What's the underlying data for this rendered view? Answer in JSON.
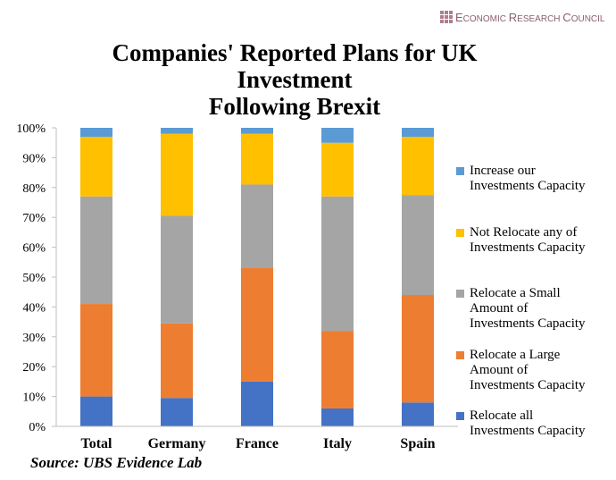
{
  "brand": {
    "name": "Economic Research Council"
  },
  "source": "Source: UBS Evidence Lab",
  "chart_data": {
    "type": "bar",
    "stacked": true,
    "title_lines": [
      "Companies' Reported Plans for UK",
      "Investment",
      "Following Brexit"
    ],
    "categories": [
      "Total",
      "Germany",
      "France",
      "Italy",
      "Spain"
    ],
    "yticks": [
      "0%",
      "10%",
      "20%",
      "30%",
      "40%",
      "50%",
      "60%",
      "70%",
      "80%",
      "90%",
      "100%"
    ],
    "ylim": [
      0,
      100
    ],
    "grid": false,
    "legend_position": "right",
    "series": [
      {
        "name": "Relocate all Investments Capacity",
        "legend_lines": [
          "Relocate all",
          "Investments Capacity"
        ],
        "color": "#4472c4",
        "values": [
          10,
          9.5,
          15,
          6,
          8
        ]
      },
      {
        "name": "Relocate a Large Amount of Investments Capacity",
        "legend_lines": [
          "Relocate a Large",
          "Amount of",
          "Investments Capacity"
        ],
        "color": "#ed7d31",
        "values": [
          31,
          25,
          38,
          26,
          36
        ]
      },
      {
        "name": "Relocate a Small Amount of Investments Capacity",
        "legend_lines": [
          "Relocate a Small",
          "Amount of",
          "Investments Capacity"
        ],
        "color": "#a5a5a5",
        "values": [
          36,
          36,
          28,
          45,
          33.5
        ]
      },
      {
        "name": "Not Relocate any of Investments Capacity",
        "legend_lines": [
          "Not Relocate any of",
          "Investments Capacity"
        ],
        "color": "#ffc000",
        "values": [
          20,
          27.5,
          17,
          18,
          19.5
        ]
      },
      {
        "name": "Increase our Investments Capacity",
        "legend_lines": [
          "Increase our",
          "Investments Capacity"
        ],
        "color": "#5b9bd5",
        "values": [
          3,
          2,
          2,
          5,
          3
        ]
      }
    ]
  }
}
